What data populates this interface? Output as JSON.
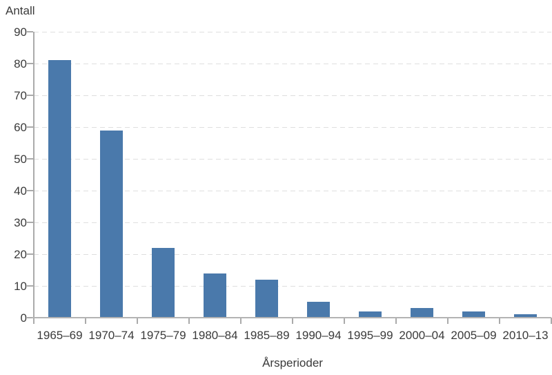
{
  "chart_data": {
    "type": "bar",
    "title": "Antall",
    "xlabel": "Årsperioder",
    "ylabel": "Antall",
    "categories": [
      "1965–69",
      "1970–74",
      "1975–79",
      "1980–84",
      "1985–89",
      "1990–94",
      "1995–99",
      "2000–04",
      "2005–09",
      "2010–13"
    ],
    "values": [
      81,
      59,
      22,
      14,
      12,
      5,
      2,
      3,
      2,
      1
    ],
    "ylim": [
      0,
      90
    ],
    "ytick_step": 10,
    "grid": "horizontal-dashed",
    "legend_position": "none",
    "colors": {
      "bar": "#4a79ab",
      "grid": "#dedede",
      "axis": "#aaaaaa",
      "x_axis": "#b3b3b3",
      "text": "#3a3a3a"
    }
  }
}
